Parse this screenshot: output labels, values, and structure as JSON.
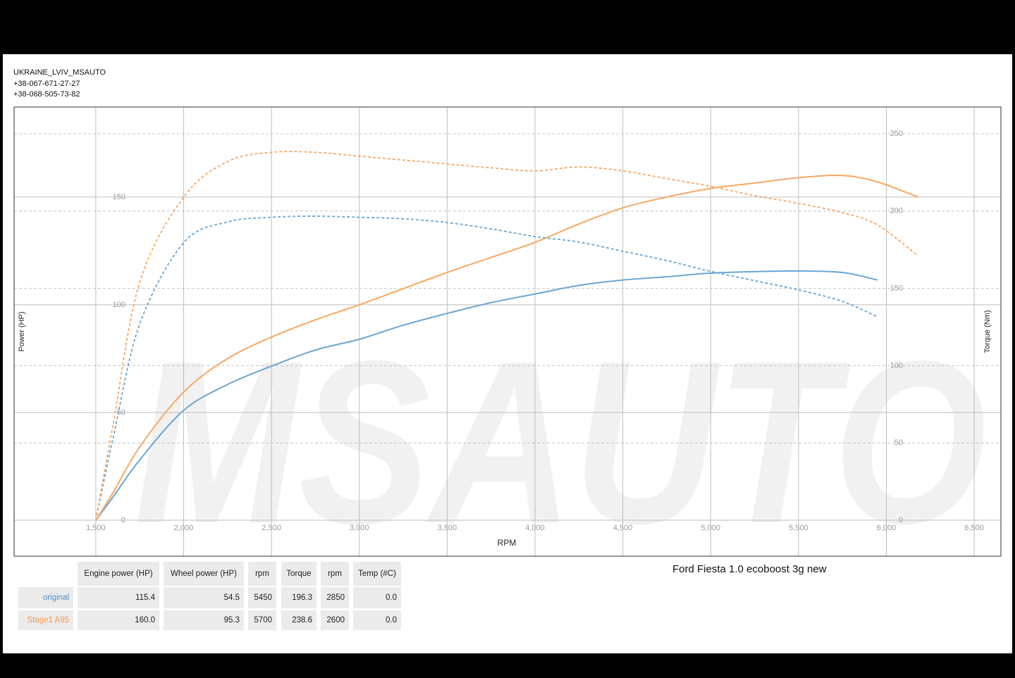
{
  "header": {
    "lines": [
      "UKRAINE_LVIV_MSAUTO",
      "+38-067-671-27-27",
      "+38-068-505-73-82"
    ]
  },
  "watermark": "MSAUTO",
  "chart_data": {
    "type": "line",
    "title": "Ford Fiesta 1.0 ecoboost 3g new",
    "xlabel": "RPM",
    "ylabel": "Power (HP)",
    "y2label": "Torque (Nm)",
    "x": [
      1500,
      1600,
      1750,
      2000,
      2250,
      2500,
      2750,
      3000,
      3250,
      3500,
      3750,
      4000,
      4250,
      4500,
      4750,
      5000,
      5250,
      5500,
      5750,
      5950,
      6180
    ],
    "series": [
      {
        "color": "#6aa6d4",
        "axis": "y",
        "dashed": false,
        "values": [
          0,
          11,
          28,
          51,
          63,
          71.5,
          79,
          84,
          90.5,
          96,
          101,
          105,
          109,
          111.5,
          113,
          114.7,
          115.4,
          115.7,
          115,
          111.5,
          null
        ]
      },
      {
        "color": "#f7a862",
        "axis": "y",
        "dashed": false,
        "values": [
          0,
          13,
          34,
          59.5,
          75,
          85,
          93,
          100,
          107.5,
          115,
          122,
          129,
          137.5,
          145,
          150,
          154,
          156.5,
          159,
          160,
          157,
          150
        ]
      },
      {
        "color": "#6aa6d4",
        "axis": "y2",
        "dashed": true,
        "values": [
          0,
          54,
          127,
          179.5,
          193,
          196,
          196.7,
          196,
          195,
          192.6,
          188.5,
          183.5,
          180,
          174,
          168,
          161,
          155,
          149,
          141.6,
          131.6,
          null
        ]
      },
      {
        "color": "#f7a862",
        "axis": "y2",
        "dashed": true,
        "values": [
          0,
          63,
          154,
          209,
          232,
          238,
          238,
          235.5,
          233,
          230.5,
          228,
          226,
          228.5,
          226,
          221,
          216,
          210,
          205,
          199,
          191,
          171
        ]
      }
    ],
    "xlim": [
      1035,
      6652
    ],
    "xticks": [
      {
        "value": 1500,
        "label": "1,500"
      },
      {
        "value": 2000,
        "label": "2,000"
      },
      {
        "value": 2500,
        "label": "2,500"
      },
      {
        "value": 3000,
        "label": "3,000"
      },
      {
        "value": 3500,
        "label": "3,500"
      },
      {
        "value": 4000,
        "label": "4,000"
      },
      {
        "value": 4500,
        "label": "4,500"
      },
      {
        "value": 5000,
        "label": "5,000"
      },
      {
        "value": 5500,
        "label": "5,500"
      },
      {
        "value": 6000,
        "label": "6,000"
      },
      {
        "value": 6500,
        "label": "6,500"
      }
    ],
    "ylim": [
      -16.7,
      191.8
    ],
    "yticks": [
      0,
      50,
      100,
      150
    ],
    "y2lim": [
      -23.2,
      267.3
    ],
    "y2ticks": [
      0,
      50,
      100,
      150,
      200,
      250
    ],
    "grid": true
  },
  "table": {
    "columns": [
      "Engine power (HP)",
      "Wheel power (HP)",
      "rpm",
      "Torque",
      "rpm",
      "Temp (#C)"
    ],
    "rows": [
      {
        "label": "original",
        "color": "#4a8fcb",
        "cells": [
          "115.4",
          "54.5",
          "5450",
          "196.3",
          "2850",
          "0.0"
        ]
      },
      {
        "label": "Stage1 A95",
        "color": "#f39a4c",
        "cells": [
          "160.0",
          "95.3",
          "5700",
          "238.6",
          "2600",
          "0.0"
        ]
      }
    ]
  }
}
